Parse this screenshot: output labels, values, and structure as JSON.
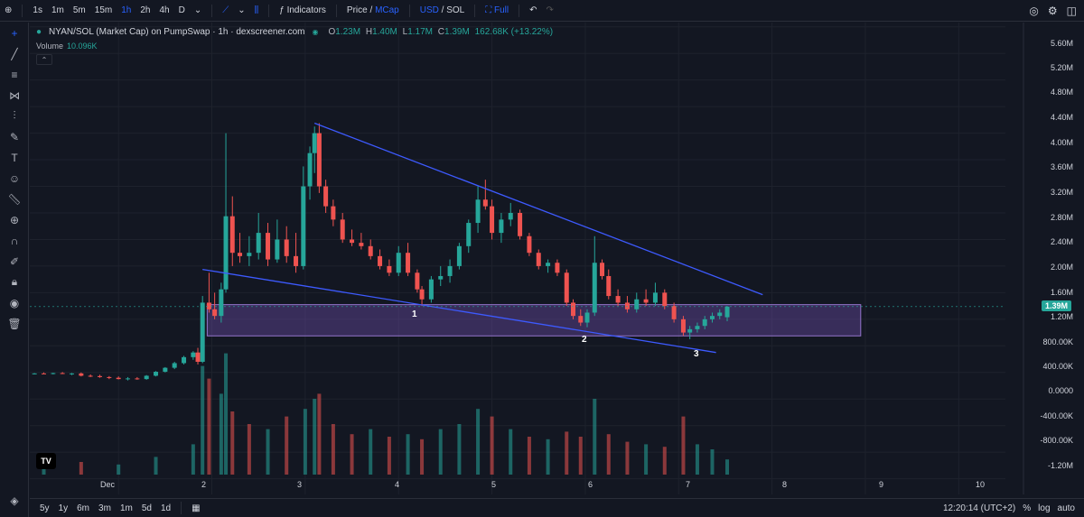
{
  "toolbar": {
    "timeframes": [
      "1s",
      "1m",
      "5m",
      "15m",
      "1h",
      "2h",
      "4h",
      "D"
    ],
    "active_timeframe": "1h",
    "indicators_label": "Indicators",
    "price_label": "Price",
    "slash": "/",
    "mcap_label": "MCap",
    "usd_label": "USD",
    "sol_label": "SOL",
    "full_label": "Full"
  },
  "legend": {
    "title": "NYAN/SOL (Market Cap) on PumpSwap · 1h · dexscreener.com",
    "o_key": "O",
    "o": "1.23M",
    "h_key": "H",
    "h": "1.40M",
    "l_key": "L",
    "l": "1.17M",
    "c_key": "C",
    "c": "1.39M",
    "change": "162.68K (+13.22%)",
    "volume_label": "Volume",
    "volume_value": "10.096K"
  },
  "price_axis": [
    "5.60M",
    "5.20M",
    "4.80M",
    "4.40M",
    "4.00M",
    "3.60M",
    "3.20M",
    "2.80M",
    "2.40M",
    "2.00M",
    "1.60M",
    "1.20M",
    "800.00K",
    "400.00K",
    "0.0000",
    "-400.00K",
    "-800.00K",
    "-1.20M"
  ],
  "current_price": "1.39M",
  "time_axis": [
    "Dec",
    "2",
    "3",
    "4",
    "5",
    "6",
    "7",
    "8",
    "9",
    "10"
  ],
  "annotations": [
    "1",
    "2",
    "3"
  ],
  "bottom": {
    "ranges": [
      "5y",
      "1y",
      "6m",
      "3m",
      "1m",
      "5d",
      "1d"
    ],
    "clock": "12:20:14 (UTC+2)",
    "percent": "%",
    "log": "log",
    "auto": "auto"
  },
  "colors": {
    "up": "#26a69a",
    "down": "#ef5350",
    "trendline": "#3d5afe",
    "zone": "#7e57c2"
  },
  "chart_data": {
    "type": "candlestick",
    "x_unit": "day of December (hourly candles)",
    "y_unit": "market cap (USD)",
    "ylim": [
      -1300000,
      5800000
    ],
    "xlim": [
      0.05,
      10.5
    ],
    "trendlines": [
      {
        "from": [
          3.1,
          4150000
        ],
        "to": [
          7.9,
          1570000
        ]
      },
      {
        "from": [
          1.9,
          1950000
        ],
        "to": [
          7.4,
          700000
        ]
      }
    ],
    "zone": {
      "x": [
        1.95,
        8.95
      ],
      "y": [
        950000,
        1420000
      ]
    },
    "candles": [
      [
        0.1,
        380000,
        390000,
        370000,
        385000
      ],
      [
        0.2,
        385000,
        400000,
        375000,
        380000
      ],
      [
        0.3,
        380000,
        395000,
        370000,
        390000
      ],
      [
        0.4,
        390000,
        405000,
        375000,
        378000
      ],
      [
        0.5,
        378000,
        392000,
        360000,
        385000
      ],
      [
        0.6,
        385000,
        400000,
        340000,
        350000
      ],
      [
        0.7,
        350000,
        370000,
        330000,
        345000
      ],
      [
        0.8,
        345000,
        365000,
        320000,
        330000
      ],
      [
        0.9,
        330000,
        345000,
        300000,
        320000
      ],
      [
        1.0,
        320000,
        340000,
        295000,
        300000
      ],
      [
        1.1,
        300000,
        330000,
        280000,
        310000
      ],
      [
        1.2,
        310000,
        330000,
        290000,
        300000
      ],
      [
        1.3,
        300000,
        360000,
        290000,
        350000
      ],
      [
        1.4,
        350000,
        420000,
        340000,
        410000
      ],
      [
        1.5,
        410000,
        480000,
        400000,
        470000
      ],
      [
        1.6,
        470000,
        560000,
        450000,
        540000
      ],
      [
        1.7,
        540000,
        650000,
        520000,
        630000
      ],
      [
        1.8,
        630000,
        720000,
        590000,
        700000
      ],
      [
        1.85,
        700000,
        770000,
        520000,
        560000
      ],
      [
        1.9,
        560000,
        1550000,
        540000,
        1450000
      ],
      [
        1.97,
        1450000,
        1900000,
        1300000,
        1350000
      ],
      [
        2.03,
        1350000,
        1600000,
        1200000,
        1250000
      ],
      [
        2.1,
        1250000,
        1750000,
        1150000,
        1650000
      ],
      [
        2.15,
        1650000,
        4000000,
        1600000,
        2750000
      ],
      [
        2.22,
        2750000,
        3050000,
        2000000,
        2200000
      ],
      [
        2.3,
        2200000,
        2500000,
        2050000,
        2150000
      ],
      [
        2.4,
        2150000,
        2450000,
        2000000,
        2200000
      ],
      [
        2.5,
        2200000,
        2800000,
        2100000,
        2500000
      ],
      [
        2.6,
        2500000,
        2650000,
        2000000,
        2100000
      ],
      [
        2.7,
        2100000,
        2700000,
        2050000,
        2400000
      ],
      [
        2.8,
        2400000,
        2600000,
        2050000,
        2150000
      ],
      [
        2.9,
        2150000,
        2500000,
        1900000,
        2000000
      ],
      [
        2.98,
        2000000,
        3500000,
        1950000,
        3200000
      ],
      [
        3.05,
        3200000,
        3800000,
        3000000,
        3700000
      ],
      [
        3.1,
        3700000,
        4100000,
        3400000,
        4000000
      ],
      [
        3.15,
        4000000,
        4150000,
        3100000,
        3200000
      ],
      [
        3.22,
        3200000,
        3300000,
        2800000,
        2900000
      ],
      [
        3.3,
        2900000,
        3000000,
        2600000,
        2700000
      ],
      [
        3.4,
        2700000,
        2800000,
        2350000,
        2400000
      ],
      [
        3.5,
        2400000,
        2550000,
        2300000,
        2350000
      ],
      [
        3.6,
        2350000,
        2500000,
        2250000,
        2300000
      ],
      [
        3.7,
        2300000,
        2400000,
        2100000,
        2150000
      ],
      [
        3.8,
        2150000,
        2250000,
        1950000,
        2000000
      ],
      [
        3.9,
        2000000,
        2100000,
        1850000,
        1900000
      ],
      [
        4.0,
        1900000,
        2300000,
        1850000,
        2200000
      ],
      [
        4.1,
        2200000,
        2350000,
        1850000,
        1900000
      ],
      [
        4.2,
        1900000,
        1950000,
        1600000,
        1650000
      ],
      [
        4.25,
        1650000,
        1700000,
        1400000,
        1500000
      ],
      [
        4.35,
        1500000,
        1850000,
        1450000,
        1800000
      ],
      [
        4.45,
        1800000,
        2000000,
        1700000,
        1850000
      ],
      [
        4.55,
        1850000,
        2100000,
        1750000,
        2000000
      ],
      [
        4.65,
        2000000,
        2350000,
        1950000,
        2300000
      ],
      [
        4.75,
        2300000,
        2700000,
        2200000,
        2650000
      ],
      [
        4.85,
        2650000,
        3200000,
        2500000,
        3000000
      ],
      [
        4.93,
        3000000,
        3300000,
        2850000,
        2900000
      ],
      [
        5.0,
        2900000,
        3000000,
        2400000,
        2500000
      ],
      [
        5.1,
        2500000,
        2800000,
        2350000,
        2700000
      ],
      [
        5.2,
        2700000,
        2950000,
        2600000,
        2800000
      ],
      [
        5.3,
        2800000,
        2850000,
        2400000,
        2450000
      ],
      [
        5.4,
        2450000,
        2500000,
        2150000,
        2200000
      ],
      [
        5.5,
        2200000,
        2250000,
        1950000,
        2000000
      ],
      [
        5.6,
        2000000,
        2100000,
        1900000,
        2050000
      ],
      [
        5.7,
        2050000,
        2100000,
        1850000,
        1900000
      ],
      [
        5.8,
        1900000,
        1950000,
        1400000,
        1450000
      ],
      [
        5.87,
        1450000,
        1500000,
        1200000,
        1250000
      ],
      [
        5.95,
        1250000,
        1350000,
        1100000,
        1150000
      ],
      [
        6.02,
        1150000,
        1350000,
        1080000,
        1300000
      ],
      [
        6.1,
        1300000,
        2450000,
        1250000,
        2050000
      ],
      [
        6.18,
        2050000,
        2100000,
        1800000,
        1850000
      ],
      [
        6.25,
        1850000,
        1950000,
        1500000,
        1550000
      ],
      [
        6.35,
        1550000,
        1650000,
        1400000,
        1450000
      ],
      [
        6.45,
        1450000,
        1550000,
        1300000,
        1350000
      ],
      [
        6.55,
        1350000,
        1600000,
        1300000,
        1500000
      ],
      [
        6.65,
        1500000,
        1650000,
        1400000,
        1450000
      ],
      [
        6.75,
        1450000,
        1750000,
        1400000,
        1600000
      ],
      [
        6.85,
        1600000,
        1650000,
        1350000,
        1400000
      ],
      [
        6.95,
        1400000,
        1450000,
        1150000,
        1200000
      ],
      [
        7.05,
        1200000,
        1250000,
        950000,
        1000000
      ],
      [
        7.12,
        1000000,
        1100000,
        900000,
        1050000
      ],
      [
        7.2,
        1050000,
        1150000,
        1000000,
        1100000
      ],
      [
        7.28,
        1100000,
        1250000,
        1050000,
        1200000
      ],
      [
        7.36,
        1200000,
        1300000,
        1150000,
        1250000
      ],
      [
        7.44,
        1250000,
        1350000,
        1200000,
        1300000
      ],
      [
        7.52,
        1230000,
        1400000,
        1170000,
        1390000
      ]
    ],
    "volume": [
      [
        0.2,
        60,
        1
      ],
      [
        0.6,
        50,
        0
      ],
      [
        1.0,
        40,
        1
      ],
      [
        1.4,
        70,
        1
      ],
      [
        1.8,
        120,
        1
      ],
      [
        1.9,
        430,
        1
      ],
      [
        1.97,
        380,
        0
      ],
      [
        2.1,
        320,
        1
      ],
      [
        2.15,
        480,
        1
      ],
      [
        2.22,
        250,
        0
      ],
      [
        2.4,
        200,
        0
      ],
      [
        2.6,
        180,
        1
      ],
      [
        2.8,
        230,
        0
      ],
      [
        3.0,
        260,
        1
      ],
      [
        3.1,
        300,
        1
      ],
      [
        3.15,
        320,
        0
      ],
      [
        3.3,
        200,
        0
      ],
      [
        3.5,
        160,
        0
      ],
      [
        3.7,
        180,
        1
      ],
      [
        3.9,
        150,
        0
      ],
      [
        4.1,
        160,
        1
      ],
      [
        4.25,
        140,
        0
      ],
      [
        4.45,
        180,
        1
      ],
      [
        4.65,
        200,
        1
      ],
      [
        4.85,
        260,
        1
      ],
      [
        5.0,
        230,
        0
      ],
      [
        5.2,
        180,
        1
      ],
      [
        5.4,
        150,
        0
      ],
      [
        5.6,
        140,
        1
      ],
      [
        5.8,
        170,
        0
      ],
      [
        5.95,
        150,
        0
      ],
      [
        6.1,
        300,
        1
      ],
      [
        6.25,
        160,
        0
      ],
      [
        6.45,
        130,
        0
      ],
      [
        6.65,
        120,
        1
      ],
      [
        6.85,
        110,
        0
      ],
      [
        7.05,
        230,
        0
      ],
      [
        7.2,
        120,
        1
      ],
      [
        7.36,
        100,
        1
      ],
      [
        7.52,
        60,
        1
      ]
    ]
  }
}
